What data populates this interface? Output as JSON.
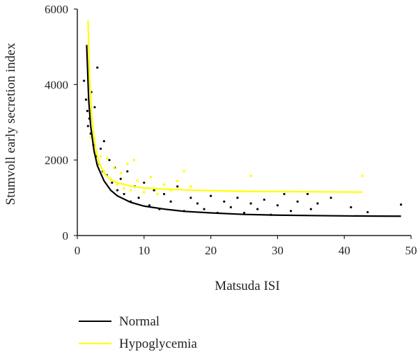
{
  "chart_data": {
    "type": "scatter",
    "xlabel": "Matsuda ISI",
    "ylabel": "Stumvoll early secretion index",
    "xlim": [
      0,
      50
    ],
    "ylim": [
      0,
      6000
    ],
    "xticks": [
      "0",
      "10",
      "20",
      "30",
      "40",
      "50"
    ],
    "yticks": [
      "0",
      "2000",
      "4000",
      "6000"
    ],
    "grid": false,
    "legend_position": "bottom-left",
    "series": [
      {
        "name": "Normal",
        "color": "#000000",
        "kind": "scatter_with_fit",
        "points": [
          [
            1.0,
            4100
          ],
          [
            1.3,
            3600
          ],
          [
            1.5,
            3300
          ],
          [
            1.6,
            2900
          ],
          [
            1.8,
            3100
          ],
          [
            2.0,
            2700
          ],
          [
            2.1,
            3800
          ],
          [
            2.4,
            2400
          ],
          [
            2.6,
            3400
          ],
          [
            2.9,
            2100
          ],
          [
            3.0,
            4450
          ],
          [
            3.2,
            1900
          ],
          [
            3.5,
            2300
          ],
          [
            3.8,
            1700
          ],
          [
            4.0,
            2500
          ],
          [
            4.4,
            1600
          ],
          [
            4.8,
            2000
          ],
          [
            5.2,
            1400
          ],
          [
            5.6,
            1800
          ],
          [
            6.0,
            1200
          ],
          [
            6.5,
            1500
          ],
          [
            7.0,
            1100
          ],
          [
            7.5,
            1700
          ],
          [
            8.0,
            900
          ],
          [
            8.6,
            1300
          ],
          [
            9.2,
            1000
          ],
          [
            10.0,
            1400
          ],
          [
            10.8,
            800
          ],
          [
            11.5,
            1200
          ],
          [
            12.3,
            700
          ],
          [
            13.0,
            1100
          ],
          [
            14.0,
            900
          ],
          [
            15.0,
            1300
          ],
          [
            16.0,
            650
          ],
          [
            17.0,
            1000
          ],
          [
            18.0,
            850
          ],
          [
            19.0,
            700
          ],
          [
            20.0,
            1050
          ],
          [
            21.0,
            600
          ],
          [
            22.0,
            900
          ],
          [
            23.0,
            750
          ],
          [
            24.0,
            1000
          ],
          [
            25.0,
            600
          ],
          [
            26.0,
            850
          ],
          [
            27.0,
            700
          ],
          [
            28.0,
            950
          ],
          [
            29.0,
            550
          ],
          [
            30.0,
            800
          ],
          [
            31.0,
            1100
          ],
          [
            32.0,
            650
          ],
          [
            33.0,
            900
          ],
          [
            34.5,
            1100
          ],
          [
            35.0,
            700
          ],
          [
            36.0,
            850
          ],
          [
            38.0,
            1000
          ],
          [
            41.0,
            750
          ],
          [
            43.5,
            620
          ],
          [
            48.5,
            820
          ]
        ],
        "fit": [
          [
            1.4,
            5050
          ],
          [
            1.7,
            3600
          ],
          [
            2.0,
            2900
          ],
          [
            2.5,
            2250
          ],
          [
            3.0,
            1850
          ],
          [
            4.0,
            1450
          ],
          [
            5.0,
            1200
          ],
          [
            6.0,
            1050
          ],
          [
            8.0,
            880
          ],
          [
            10.0,
            780
          ],
          [
            13.0,
            700
          ],
          [
            16.0,
            640
          ],
          [
            20.0,
            600
          ],
          [
            25.0,
            560
          ],
          [
            30.0,
            540
          ],
          [
            35.0,
            530
          ],
          [
            40.0,
            520
          ],
          [
            45.0,
            515
          ],
          [
            48.5,
            512
          ]
        ]
      },
      {
        "name": "Hypoglycemia",
        "color": "#ffff00",
        "kind": "scatter_with_fit",
        "points": [
          [
            2.0,
            2600
          ],
          [
            2.5,
            2200
          ],
          [
            3.0,
            1900
          ],
          [
            3.5,
            2100
          ],
          [
            4.0,
            1700
          ],
          [
            4.5,
            2050
          ],
          [
            5.0,
            1500
          ],
          [
            5.5,
            1800
          ],
          [
            6.0,
            1350
          ],
          [
            6.5,
            1650
          ],
          [
            7.0,
            1250
          ],
          [
            7.5,
            1900
          ],
          [
            8.0,
            1200
          ],
          [
            8.5,
            2000
          ],
          [
            9.0,
            1450
          ],
          [
            10.0,
            1150
          ],
          [
            11.0,
            1550
          ],
          [
            12.0,
            1100
          ],
          [
            13.0,
            1350
          ],
          [
            14.0,
            1200
          ],
          [
            15.0,
            1450
          ],
          [
            16.0,
            1700
          ],
          [
            17.0,
            1300
          ],
          [
            26.0,
            1580
          ],
          [
            42.7,
            1580
          ]
        ],
        "fit": [
          [
            1.6,
            5700
          ],
          [
            1.8,
            4400
          ],
          [
            2.0,
            3600
          ],
          [
            2.3,
            2900
          ],
          [
            2.7,
            2350
          ],
          [
            3.2,
            1950
          ],
          [
            4.0,
            1650
          ],
          [
            5.0,
            1480
          ],
          [
            6.0,
            1400
          ],
          [
            8.0,
            1310
          ],
          [
            10.0,
            1260
          ],
          [
            13.0,
            1230
          ],
          [
            16.0,
            1210
          ],
          [
            20.0,
            1190
          ],
          [
            25.0,
            1170
          ],
          [
            30.0,
            1165
          ],
          [
            35.0,
            1160
          ],
          [
            42.7,
            1150
          ]
        ]
      }
    ]
  }
}
